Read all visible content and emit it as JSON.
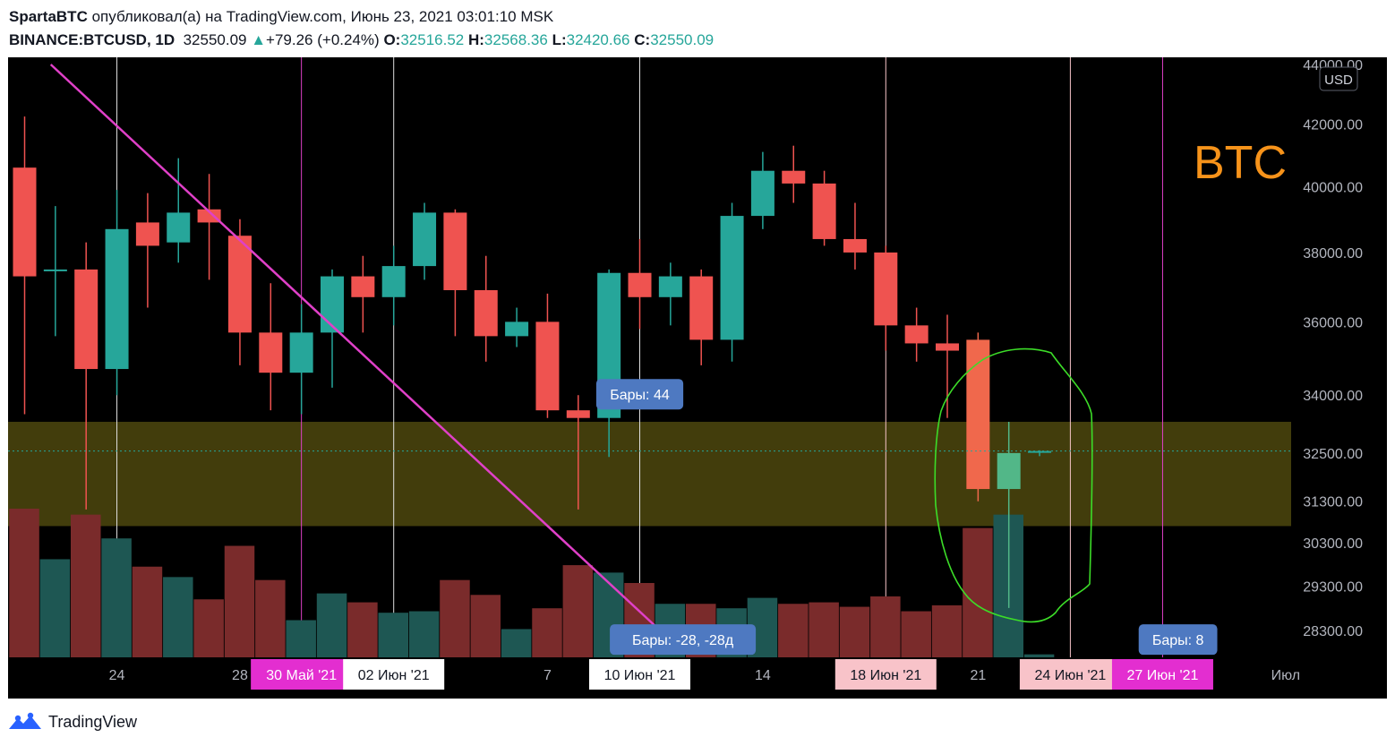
{
  "header": {
    "author": "SpartaBTC",
    "published": "опубликовал(а) на TradingView.com, Июнь 23, 2021 03:01:10 MSK",
    "symbol": "BINANCE:BTCUSD, 1D",
    "last": "32550.09",
    "arrow": "▲",
    "change": "+79.26 (+0.24%)",
    "o_label": "O:",
    "o_value": "32516.52",
    "h_label": "H:",
    "h_value": "32568.36",
    "l_label": "L:",
    "l_value": "32420.66",
    "c_label": "C:",
    "c_value": "32550.09"
  },
  "watermark": "BTC",
  "currency": "USD",
  "colors": {
    "up": "#26a69a",
    "down": "#ef5350",
    "vol_up": "#1e5753",
    "vol_down": "#7a2b2b",
    "zone": "#5c5410",
    "trendline": "#e040c8",
    "annotation_label": "#4e79c1",
    "circle": "#3cdc28",
    "watermark": "#f7931a"
  },
  "y_axis": {
    "scale": "log",
    "ticks": [
      44000,
      42000,
      40000,
      38000,
      36000,
      34000,
      32500,
      31300,
      30300,
      29300,
      28300
    ],
    "tick_labels": [
      "44000.00",
      "42000.00",
      "40000.00",
      "38000.00",
      "36000.00",
      "34000.00",
      "32500.00",
      "31300.00",
      "30300.00",
      "29300.00",
      "28300.00"
    ]
  },
  "x_axis": {
    "ticks": [
      {
        "day": 3,
        "label": "24",
        "style": "plain"
      },
      {
        "day": 7,
        "label": "28",
        "style": "plain"
      },
      {
        "day": 9,
        "label": "30 Май '21",
        "style": "magenta"
      },
      {
        "day": 12,
        "label": "02 Июн '21",
        "style": "white"
      },
      {
        "day": 17,
        "label": "7",
        "style": "plain"
      },
      {
        "day": 20,
        "label": "10 Июн '21",
        "style": "white"
      },
      {
        "day": 24,
        "label": "14",
        "style": "plain"
      },
      {
        "day": 28,
        "label": "18 Июн '21",
        "style": "pink"
      },
      {
        "day": 31,
        "label": "21",
        "style": "plain"
      },
      {
        "day": 34,
        "label": "24 Июн '21",
        "style": "pink"
      },
      {
        "day": 37,
        "label": "27 Июн '21",
        "style": "magenta"
      },
      {
        "day": 41,
        "label": "Июл",
        "style": "plain"
      }
    ]
  },
  "vertical_lines": [
    {
      "day": 3,
      "color": "#e0e0e0"
    },
    {
      "day": 9,
      "color": "#e040c8"
    },
    {
      "day": 12,
      "color": "#e0e0e0"
    },
    {
      "day": 20,
      "color": "#e0e0e0"
    },
    {
      "day": 28,
      "color": "#f7c4c8"
    },
    {
      "day": 34,
      "color": "#f7c4c8"
    },
    {
      "day": 37,
      "color": "#e040c8"
    }
  ],
  "zone": {
    "top": 33300,
    "bottom": 30700
  },
  "trendline": {
    "x1_day": 0.85,
    "y1": 44000,
    "x2_day": 21.3,
    "y2": 27900
  },
  "annotations": [
    {
      "text": "Бары: 44",
      "day": 20,
      "price": 34000
    },
    {
      "text": "Бары: -28, -28д",
      "day": 21.4,
      "price": 28080
    },
    {
      "text": "Бары: 8",
      "day": 37.5,
      "price": 28080
    }
  ],
  "chart_data": {
    "type": "candlestick",
    "start_date": "2021-05-21",
    "candles": [
      {
        "date": "2021-05-21",
        "o": 40600,
        "h": 42250,
        "l": 33500,
        "c": 37300
      },
      {
        "date": "2021-05-22",
        "o": 37500,
        "h": 39400,
        "l": 35600,
        "c": 37500
      },
      {
        "date": "2021-05-23",
        "o": 37500,
        "h": 38300,
        "l": 31100,
        "c": 34700
      },
      {
        "date": "2021-05-24",
        "o": 34700,
        "h": 39900,
        "l": 34000,
        "c": 38700
      },
      {
        "date": "2021-05-25",
        "o": 38900,
        "h": 39800,
        "l": 36400,
        "c": 38200
      },
      {
        "date": "2021-05-26",
        "o": 38300,
        "h": 40900,
        "l": 37700,
        "c": 39200
      },
      {
        "date": "2021-05-27",
        "o": 39300,
        "h": 40400,
        "l": 37200,
        "c": 38900
      },
      {
        "date": "2021-05-28",
        "o": 38500,
        "h": 39000,
        "l": 34800,
        "c": 35700
      },
      {
        "date": "2021-05-29",
        "o": 35700,
        "h": 37100,
        "l": 33600,
        "c": 34600
      },
      {
        "date": "2021-05-30",
        "o": 34600,
        "h": 36500,
        "l": 33500,
        "c": 35700
      },
      {
        "date": "2021-05-31",
        "o": 35700,
        "h": 37500,
        "l": 34200,
        "c": 37300
      },
      {
        "date": "2021-06-01",
        "o": 37300,
        "h": 37900,
        "l": 35700,
        "c": 36700
      },
      {
        "date": "2021-06-02",
        "o": 36700,
        "h": 38200,
        "l": 35900,
        "c": 37600
      },
      {
        "date": "2021-06-03",
        "o": 37600,
        "h": 39500,
        "l": 37200,
        "c": 39200
      },
      {
        "date": "2021-06-04",
        "o": 39200,
        "h": 39300,
        "l": 35600,
        "c": 36900
      },
      {
        "date": "2021-06-05",
        "o": 36900,
        "h": 37900,
        "l": 34900,
        "c": 35600
      },
      {
        "date": "2021-06-06",
        "o": 35600,
        "h": 36400,
        "l": 35300,
        "c": 36000
      },
      {
        "date": "2021-06-07",
        "o": 36000,
        "h": 36800,
        "l": 33400,
        "c": 33600
      },
      {
        "date": "2021-06-08",
        "o": 33600,
        "h": 34000,
        "l": 31100,
        "c": 33400
      },
      {
        "date": "2021-06-09",
        "o": 33400,
        "h": 37500,
        "l": 32400,
        "c": 37400
      },
      {
        "date": "2021-06-10",
        "o": 37400,
        "h": 38400,
        "l": 35800,
        "c": 36700
      },
      {
        "date": "2021-06-11",
        "o": 36700,
        "h": 37700,
        "l": 35900,
        "c": 37300
      },
      {
        "date": "2021-06-12",
        "o": 37300,
        "h": 37500,
        "l": 34800,
        "c": 35500
      },
      {
        "date": "2021-06-13",
        "o": 35500,
        "h": 39500,
        "l": 34900,
        "c": 39100
      },
      {
        "date": "2021-06-14",
        "o": 39100,
        "h": 41100,
        "l": 38700,
        "c": 40500
      },
      {
        "date": "2021-06-15",
        "o": 40500,
        "h": 41300,
        "l": 39500,
        "c": 40100
      },
      {
        "date": "2021-06-16",
        "o": 40100,
        "h": 40500,
        "l": 38200,
        "c": 38400
      },
      {
        "date": "2021-06-17",
        "o": 38400,
        "h": 39500,
        "l": 37500,
        "c": 38000
      },
      {
        "date": "2021-06-18",
        "o": 38000,
        "h": 38200,
        "l": 35200,
        "c": 35900
      },
      {
        "date": "2021-06-19",
        "o": 35900,
        "h": 36400,
        "l": 34900,
        "c": 35400
      },
      {
        "date": "2021-06-20",
        "o": 35400,
        "h": 36200,
        "l": 33400,
        "c": 35200
      },
      {
        "date": "2021-06-21",
        "o": 35500,
        "h": 35700,
        "l": 31300,
        "c": 31600
      },
      {
        "date": "2021-06-22",
        "o": 31600,
        "h": 33300,
        "l": 28800,
        "c": 32500
      },
      {
        "date": "2021-06-23",
        "o": 32516.52,
        "h": 32568.36,
        "l": 32420.66,
        "c": 32550.09
      }
    ],
    "volume": [
      1.0,
      0.66,
      0.96,
      0.8,
      0.61,
      0.54,
      0.39,
      0.75,
      0.52,
      0.25,
      0.43,
      0.37,
      0.3,
      0.31,
      0.52,
      0.42,
      0.19,
      0.33,
      0.62,
      0.57,
      0.5,
      0.36,
      0.36,
      0.33,
      0.4,
      0.36,
      0.37,
      0.34,
      0.41,
      0.31,
      0.35,
      0.87,
      0.96,
      0.02
    ]
  }
}
